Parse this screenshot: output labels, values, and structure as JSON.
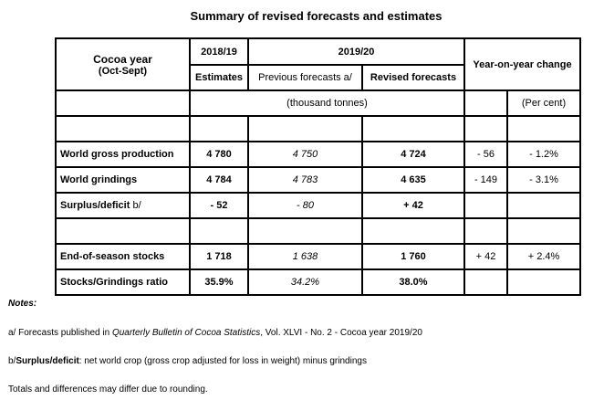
{
  "title": "Summary of revised forecasts and estimates",
  "header": {
    "cocoa_year": "Cocoa year",
    "oct_sept": "(Oct-Sept)",
    "year_1819": "2018/19",
    "year_1920": "2019/20",
    "yoy": "Year-on-year change",
    "estimates": "Estimates",
    "previous": "Previous forecasts a/",
    "revised": "Revised forecasts",
    "unit_tonnes": "(thousand tonnes)",
    "unit_percent": "(Per cent)"
  },
  "rows": [
    {
      "label": "World gross production",
      "label_suffix": "",
      "est": "4 780",
      "prev": "4 750",
      "rev": "4 724",
      "diff": "- 56",
      "pct": "- 1.2%"
    },
    {
      "label": "World grindings",
      "label_suffix": "",
      "est": "4 784",
      "prev": "4 783",
      "rev": "4 635",
      "diff": "- 149",
      "pct": "- 3.1%"
    },
    {
      "label": "Surplus/deficit",
      "label_suffix": " b/",
      "est": "- 52",
      "prev": "- 80",
      "rev": "+ 42",
      "diff": "",
      "pct": ""
    },
    {
      "label": "End-of-season stocks",
      "label_suffix": "",
      "est": "1 718",
      "prev": "1 638",
      "rev": "1 760",
      "diff": "+ 42",
      "pct": "+ 2.4%"
    },
    {
      "label": "Stocks/Grindings ratio",
      "label_suffix": "",
      "est": "35.9%",
      "prev": "34.2%",
      "rev": "38.0%",
      "diff": "",
      "pct": ""
    }
  ],
  "notes": {
    "heading": "Notes:",
    "a_prefix": "a/ Forecasts published in ",
    "a_italic": "Quarterly Bulletin of Cocoa Statistics",
    "a_suffix": ", Vol. XLVI - No. 2 - Cocoa year 2019/20",
    "b_prefix": "b/",
    "b_bold": "Surplus/deficit",
    "b_suffix": ": net world crop (gross crop adjusted for loss in weight) minus grindings",
    "totals": "Totals and differences may differ due to rounding."
  }
}
